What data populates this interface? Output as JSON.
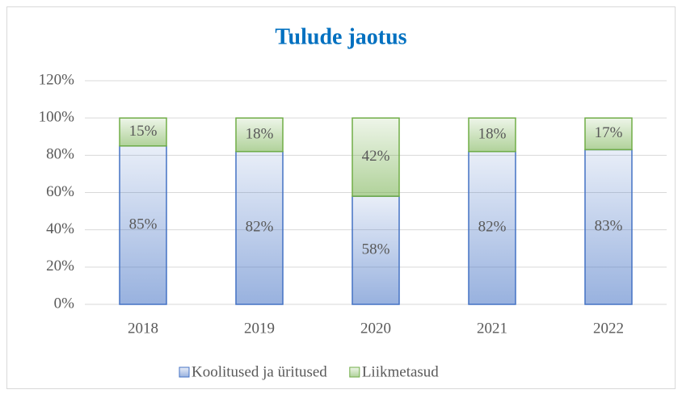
{
  "chart_data": {
    "type": "stacked_bar",
    "title": "Tulude jaotus",
    "categories": [
      "2018",
      "2019",
      "2020",
      "2021",
      "2022"
    ],
    "series": [
      {
        "name": "Koolitused ja üritused",
        "color": "#4472c4",
        "values": [
          85,
          82,
          58,
          82,
          83
        ],
        "value_labels": [
          "85%",
          "82%",
          "58%",
          "82%",
          "83%"
        ]
      },
      {
        "name": "Liikmetasud",
        "color": "#70ad47",
        "values": [
          15,
          18,
          42,
          18,
          17
        ],
        "value_labels": [
          "15%",
          "18%",
          "42%",
          "18%",
          "17%"
        ]
      }
    ],
    "ylim": [
      0,
      120
    ],
    "yticks": [
      {
        "value": 0,
        "label": "0%"
      },
      {
        "value": 20,
        "label": "20%"
      },
      {
        "value": 40,
        "label": "40%"
      },
      {
        "value": 60,
        "label": "60%"
      },
      {
        "value": 80,
        "label": "80%"
      },
      {
        "value": 100,
        "label": "100%"
      },
      {
        "value": 120,
        "label": "120%"
      }
    ],
    "grid": true,
    "legend": "bottom"
  }
}
